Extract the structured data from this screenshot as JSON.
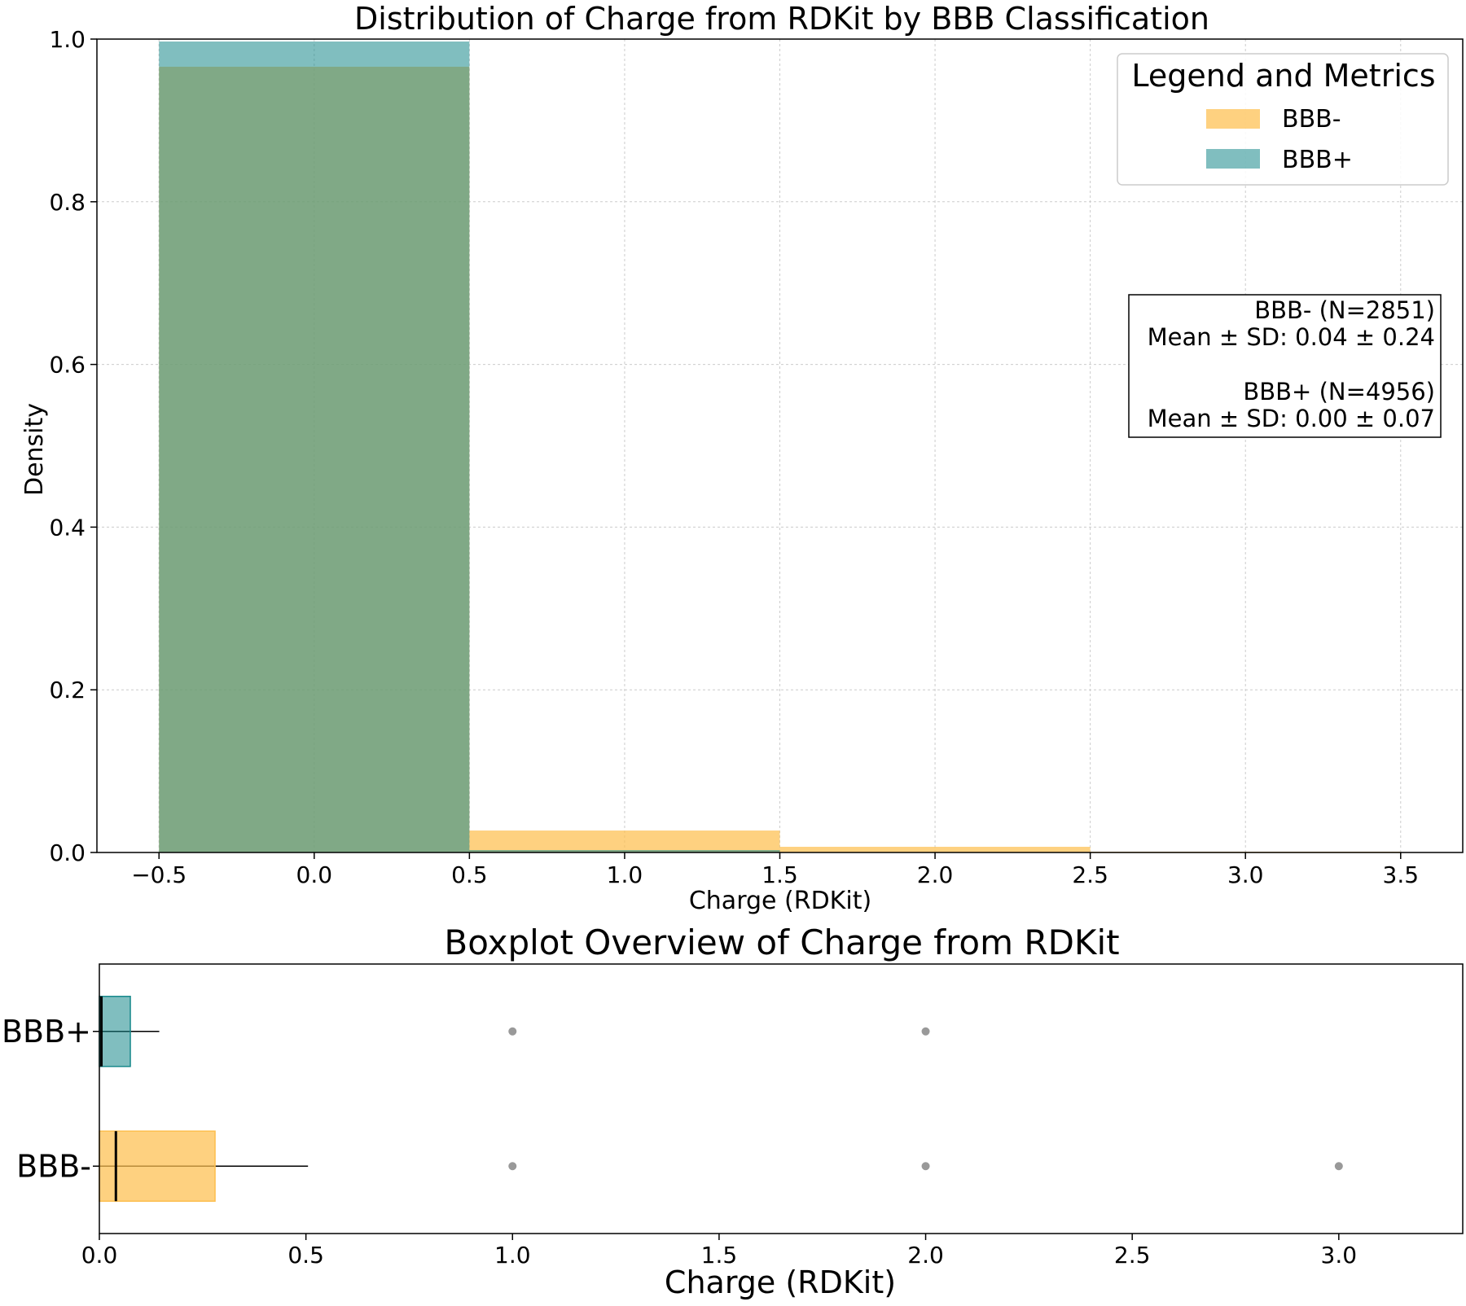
{
  "chart_data": [
    {
      "type": "histogram",
      "title": "Distribution of Charge from RDKit by BBB Classification",
      "xlabel": "Charge (RDKit)",
      "ylabel": "Density",
      "xlim": [
        -0.7,
        3.7
      ],
      "ylim": [
        0,
        1.0
      ],
      "xticks": [
        -0.5,
        0.0,
        0.5,
        1.0,
        1.5,
        2.0,
        2.5,
        3.0,
        3.5
      ],
      "yticks": [
        0.0,
        0.2,
        0.4,
        0.6,
        0.8,
        1.0
      ],
      "bins": [
        [
          -0.5,
          0.5
        ],
        [
          0.5,
          1.5
        ],
        [
          1.5,
          2.5
        ],
        [
          2.5,
          3.5
        ]
      ],
      "grid": true,
      "legend_placement": "top-right",
      "series": [
        {
          "name": "BBB-",
          "color": "#fdbf4f",
          "values": [
            0.966,
            0.027,
            0.007,
            0.001
          ]
        },
        {
          "name": "BBB+",
          "color": "#17898b",
          "values": [
            0.997,
            0.003,
            0.0004,
            0.0
          ]
        }
      ],
      "legend_title": "Legend and Metrics",
      "legend_entries": [
        "BBB-",
        "BBB+"
      ],
      "metrics_box": [
        "BBB- (N=2851)",
        "Mean ± SD: 0.04 ± 0.24",
        "BBB+ (N=4956)",
        "Mean ± SD: 0.00 ± 0.07"
      ]
    },
    {
      "type": "boxplot",
      "title": "Boxplot Overview of Charge from RDKit",
      "xlabel": "Charge (RDKit)",
      "xlim": [
        0.0,
        3.3
      ],
      "xticks": [
        0.0,
        0.5,
        1.0,
        1.5,
        2.0,
        2.5,
        3.0
      ],
      "categories": [
        "BBB+",
        "BBB-"
      ],
      "boxes": [
        {
          "name": "BBB+",
          "color": "#17898b",
          "q1": 0.0,
          "median": 0.005,
          "q3": 0.075,
          "whisker_low": 0.0,
          "whisker_high": 0.145,
          "fliers": [
            1.0,
            2.0
          ]
        },
        {
          "name": "BBB-",
          "color": "#fdbf4f",
          "q1": 0.0,
          "median": 0.04,
          "q3": 0.28,
          "whisker_low": 0.0,
          "whisker_high": 0.505,
          "fliers": [
            1.0,
            2.0,
            3.0
          ]
        }
      ]
    }
  ]
}
